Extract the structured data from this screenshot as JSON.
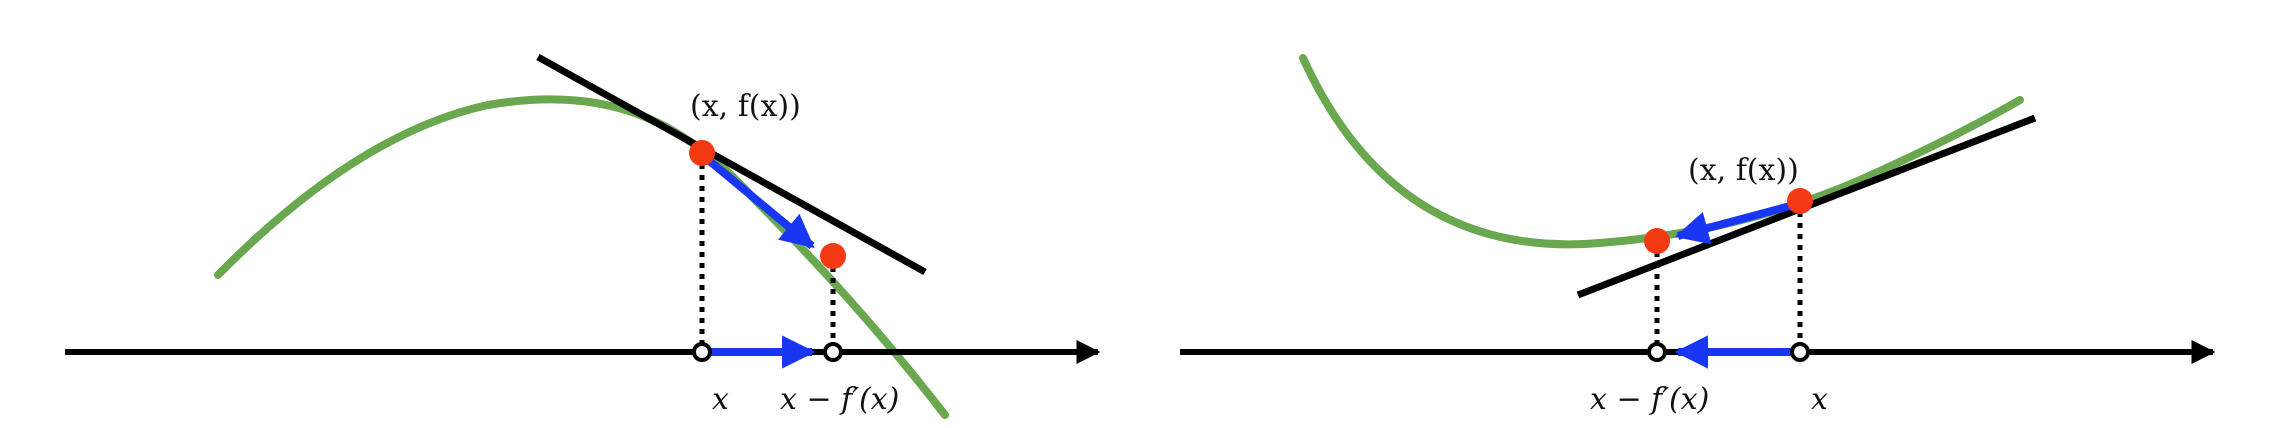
{
  "colors": {
    "curve": "#6aa84f",
    "tangent": "#000000",
    "axis": "#000000",
    "point": "#f33a12",
    "arrow": "#1a36f5",
    "dotted": "#000000"
  },
  "panels": [
    {
      "point_label": "(x, f(x))",
      "x_label": "x",
      "step_label": "x − f′(x)"
    },
    {
      "point_label": "(x, f(x))",
      "x_label": "x",
      "step_label": "x − f′(x)"
    }
  ]
}
